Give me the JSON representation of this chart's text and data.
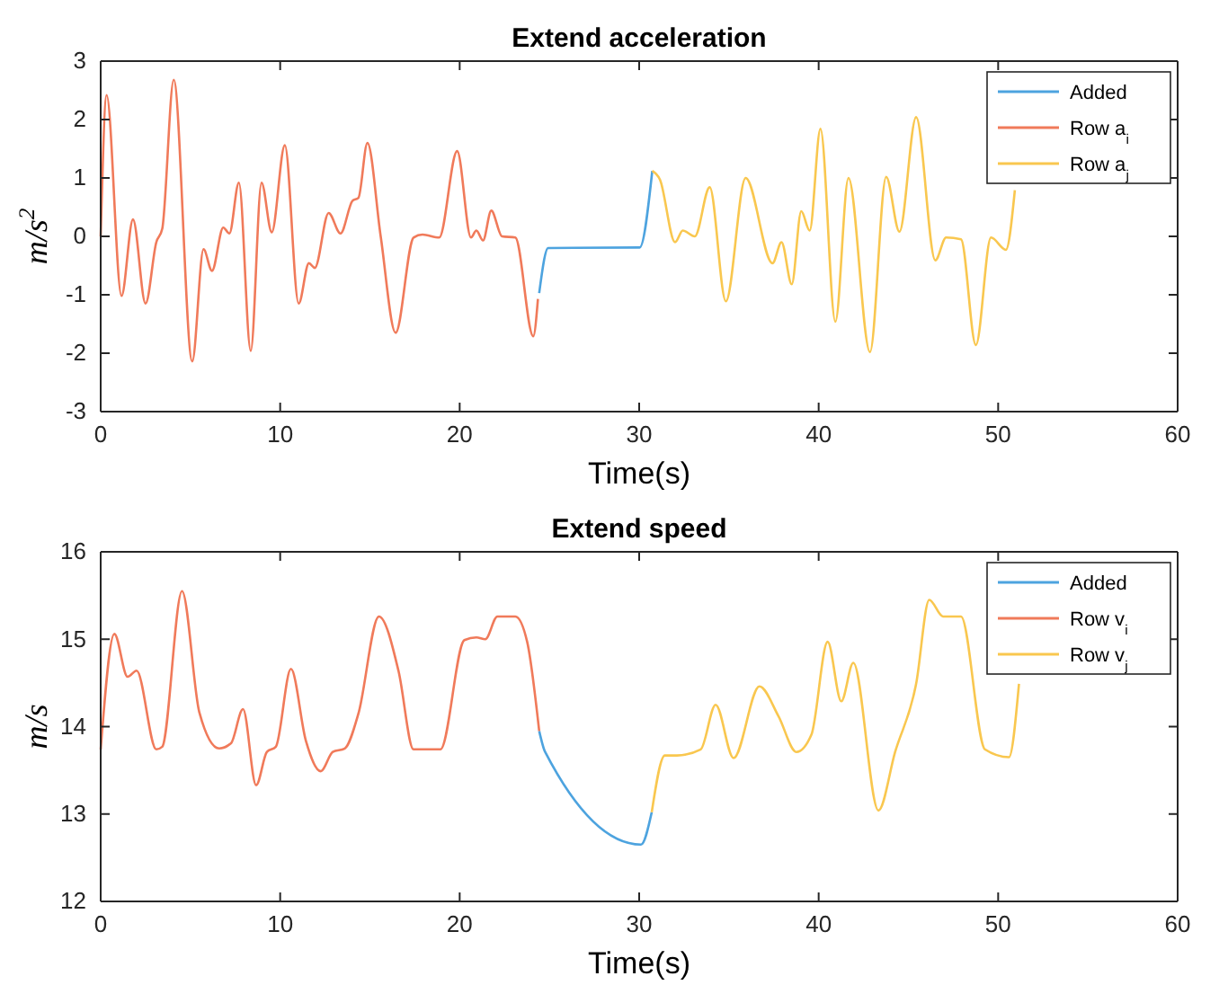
{
  "chart_data": [
    {
      "type": "line",
      "title": "Extend acceleration",
      "xlabel": "Time(s)",
      "ylabel": "m/s$^{2}$",
      "xlim": [
        0,
        60
      ],
      "xticks": [
        0,
        10,
        20,
        30,
        40,
        50,
        60
      ],
      "ylim": [
        -3,
        3
      ],
      "yticks": [
        -3,
        -2,
        -1,
        0,
        1,
        2,
        3
      ],
      "legend": "top right",
      "series": [
        {
          "name": "Added",
          "color": "#4da3df",
          "x": [
            24.43,
            24.93,
            30.03,
            30.73
          ],
          "values": [
            -0.97,
            -0.2,
            -0.19,
            1.12
          ]
        },
        {
          "name": "Row a$_{i}$",
          "color": "#f07a5a",
          "x": [
            0,
            0.33,
            1.16,
            1.8,
            2.5,
            3.1,
            3.43,
            4.07,
            5.1,
            5.73,
            6.2,
            6.83,
            7.17,
            7.7,
            8.36,
            8.96,
            9.53,
            10.26,
            11.03,
            11.6,
            11.93,
            12.7,
            13.36,
            14.03,
            14.36,
            14.86,
            15.6,
            16.43,
            17.43,
            17.93,
            18.86,
            19.86,
            20.63,
            20.93,
            21.3,
            21.76,
            22.36,
            23.1,
            24.1,
            24.36
          ],
          "values": [
            0,
            2.42,
            -1.02,
            0.29,
            -1.15,
            -0.1,
            0.13,
            2.68,
            -2.14,
            -0.22,
            -0.59,
            0.15,
            0.05,
            0.92,
            -1.96,
            0.92,
            0.07,
            1.56,
            -1.15,
            -0.46,
            -0.54,
            0.4,
            0.05,
            0.61,
            0.66,
            1.6,
            0,
            -1.65,
            -0.02,
            0.03,
            -0.02,
            1.46,
            -0.02,
            0.1,
            -0.07,
            0.44,
            0,
            -0.02,
            -1.71,
            -1.07
          ]
        },
        {
          "name": "Row a$_{j}$",
          "color": "#f9c74f",
          "x": [
            30.73,
            31.16,
            32,
            32.43,
            33.1,
            33.93,
            34.83,
            35.93,
            37.43,
            37.93,
            38.5,
            39.03,
            39.5,
            40.1,
            40.93,
            41.66,
            42.86,
            43.76,
            44.5,
            45.43,
            46.5,
            47.1,
            47.93,
            48.76,
            49.6,
            50.43,
            50.93
          ],
          "values": [
            1.12,
            0.97,
            -0.1,
            0.1,
            0,
            0.84,
            -1.11,
            1.0,
            -0.46,
            -0.1,
            -0.82,
            0.43,
            0.1,
            1.84,
            -1.46,
            1.0,
            -1.98,
            1.02,
            0.08,
            2.04,
            -0.41,
            -0.02,
            -0.05,
            -1.86,
            -0.02,
            -0.23,
            0.79
          ]
        }
      ]
    },
    {
      "type": "line",
      "title": "Extend speed",
      "xlabel": "Time(s)",
      "ylabel": "m/s",
      "xlim": [
        0,
        60
      ],
      "xticks": [
        0,
        10,
        20,
        30,
        40,
        50,
        60
      ],
      "ylim": [
        12,
        16
      ],
      "yticks": [
        12,
        13,
        14,
        15,
        16
      ],
      "legend": "top right",
      "series": [
        {
          "name": "Added",
          "color": "#4da3df",
          "x": [
            24.43,
            24.76,
            30.1,
            30.7
          ],
          "values": [
            13.95,
            13.71,
            12.65,
            13.02
          ]
        },
        {
          "name": "Row v$_{i}$",
          "color": "#f07a5a",
          "x": [
            0,
            0.76,
            1.5,
            2,
            3.1,
            3.43,
            4.53,
            5.5,
            6.6,
            7.26,
            7.93,
            8.66,
            9.26,
            9.76,
            10.6,
            11.43,
            12.26,
            12.93,
            13.6,
            14.36,
            15.5,
            16.6,
            17.43,
            18.93,
            20.26,
            20.93,
            21.43,
            22.1,
            23.1,
            23.76,
            24.43
          ],
          "values": [
            13.74,
            15.06,
            14.57,
            14.64,
            13.74,
            13.77,
            15.55,
            14.16,
            13.75,
            13.81,
            14.2,
            13.33,
            13.71,
            13.77,
            14.66,
            13.84,
            13.49,
            13.71,
            13.75,
            14.15,
            15.26,
            14.63,
            13.74,
            13.74,
            14.99,
            15.02,
            15.0,
            15.26,
            15.26,
            14.97,
            13.95
          ]
        },
        {
          "name": "Row v$_{j}$",
          "color": "#f9c74f",
          "x": [
            30.7,
            31.43,
            32.1,
            33.43,
            34.26,
            35.26,
            36.7,
            37.76,
            38.76,
            39.6,
            40.5,
            41.26,
            41.93,
            43.33,
            44.26,
            45.43,
            46.16,
            46.93,
            47.93,
            49.26,
            50.6,
            51.16
          ],
          "values": [
            13.02,
            13.67,
            13.67,
            13.74,
            14.25,
            13.64,
            14.46,
            14.12,
            13.71,
            13.91,
            14.97,
            14.29,
            14.73,
            13.04,
            13.71,
            14.49,
            15.45,
            15.26,
            15.26,
            13.74,
            13.65,
            14.49
          ]
        }
      ]
    }
  ]
}
